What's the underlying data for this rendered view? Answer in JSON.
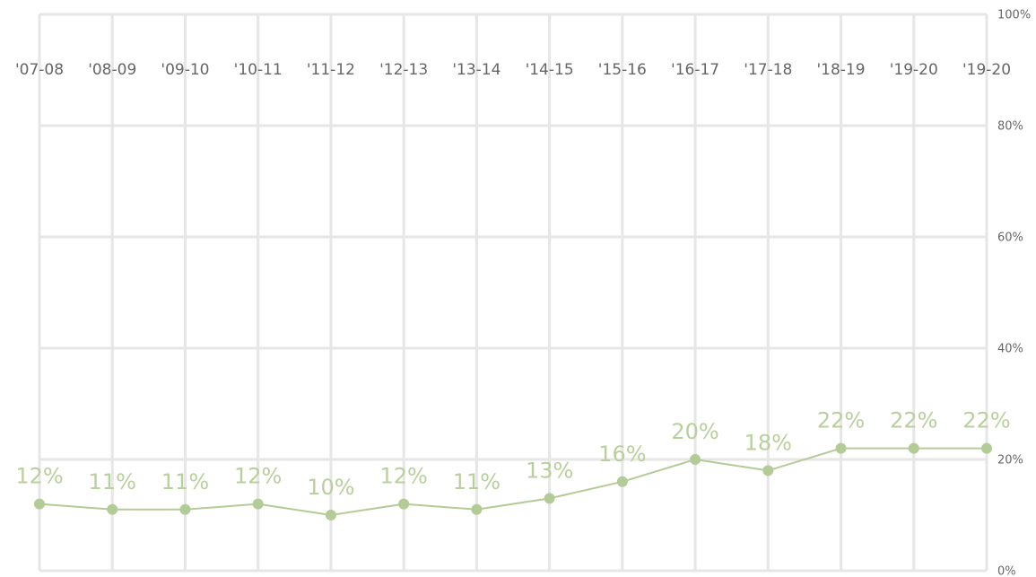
{
  "chart_data": {
    "type": "line",
    "categories": [
      "'07-08",
      "'08-09",
      "'09-10",
      "'10-11",
      "'11-12",
      "'12-13",
      "'13-14",
      "'14-15",
      "'15-16",
      "'16-17",
      "'17-18",
      "'18-19",
      "'19-20",
      "'19-20"
    ],
    "series": [
      {
        "color": "#b3cb96",
        "values": [
          12,
          11,
          11,
          12,
          10,
          12,
          11,
          13,
          16,
          20,
          18,
          22,
          22,
          22
        ],
        "value_labels": [
          "12%",
          "11%",
          "11%",
          "12%",
          "10%",
          "12%",
          "11%",
          "13%",
          "16%",
          "20%",
          "18%",
          "22%",
          "22%",
          "22%"
        ]
      }
    ],
    "ylim": [
      0,
      100
    ],
    "yticks": [
      {
        "value": 0,
        "label": "0%"
      },
      {
        "value": 20,
        "label": "20%"
      },
      {
        "value": 40,
        "label": "40%"
      },
      {
        "value": 60,
        "label": "60%"
      },
      {
        "value": 80,
        "label": "80%"
      },
      {
        "value": 100,
        "label": "100%"
      }
    ],
    "grid": true
  }
}
